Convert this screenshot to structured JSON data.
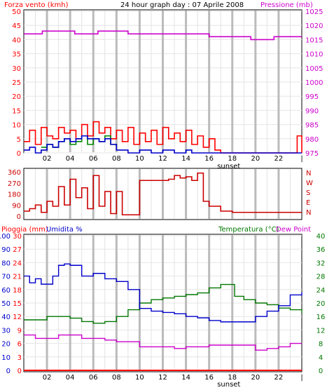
{
  "chart_data": [
    {
      "type": "line",
      "title": "24 hour graph day : 07 Aprile 2008",
      "ylabel_left": "Forza vento (kmh)",
      "ylabel_right": "Pressione (mb)",
      "x_ticks": [
        "02",
        "04",
        "06",
        "08",
        "10",
        "12",
        "14",
        "16",
        "18",
        "20",
        "22",
        "|"
      ],
      "sunset_label": "sunset",
      "ylim_left": [
        0,
        50
      ],
      "y_ticks_left": [
        "0",
        "5",
        "10",
        "15",
        "20",
        "25",
        "30",
        "35",
        "40",
        "45",
        "50"
      ],
      "ylim_right": [
        975,
        1025
      ],
      "y_ticks_right": [
        "975",
        "980",
        "985",
        "990",
        "995",
        "1000",
        "1005",
        "1010",
        "1015",
        "1020",
        "1025"
      ],
      "grid": true,
      "colors": {
        "wind": "#ff0000",
        "wind_avg": "#0000cc",
        "wind_green": "#008800",
        "pressure": "#cc00cc",
        "left_axis": "#ff0000",
        "right_axis": "#cc00cc",
        "grid": "#cccccc"
      },
      "series": [
        {
          "name": "Pressione",
          "axis": "right",
          "x": [
            0,
            1.2,
            1.6,
            2.4,
            3.6,
            4.4,
            5.4,
            6.4,
            7.4,
            8,
            9,
            10,
            11,
            12,
            13,
            14,
            15,
            16,
            16.5,
            18,
            19,
            19.6,
            20.8,
            21.6,
            22,
            22.8,
            23.4,
            24
          ],
          "y": [
            1017,
            1017,
            1018,
            1018,
            1018,
            1017,
            1017,
            1018,
            1018,
            1018,
            1017,
            1017,
            1017,
            1017,
            1017,
            1017,
            1017,
            1016,
            1016,
            1016,
            1016,
            1015,
            1015,
            1016,
            1016,
            1016,
            1016,
            1016
          ]
        },
        {
          "name": "Forza vento (max)",
          "axis": "left",
          "x": [
            0,
            0.5,
            1,
            1.5,
            2,
            2.5,
            3,
            3.5,
            4,
            4.5,
            5,
            5.5,
            6,
            6.5,
            7,
            7.5,
            8,
            8.5,
            9,
            9.5,
            10,
            10.5,
            11,
            11.5,
            12,
            12.5,
            13,
            13.5,
            14,
            14.5,
            15,
            15.5,
            16,
            16.5,
            17,
            18,
            19,
            20,
            21,
            22,
            23,
            23.6,
            24
          ],
          "y": [
            4,
            8,
            3,
            9,
            6,
            5,
            9,
            7,
            8,
            5,
            10,
            6,
            11,
            7,
            9,
            5,
            8,
            4,
            9,
            3,
            7,
            4,
            8,
            3,
            9,
            5,
            7,
            4,
            8,
            3,
            6,
            2,
            5,
            1,
            0,
            0,
            0,
            0,
            0,
            0,
            0,
            6,
            0
          ]
        },
        {
          "name": "Forza vento (media)",
          "axis": "left",
          "x": [
            0,
            0.5,
            1,
            1.5,
            2,
            2.5,
            3,
            3.5,
            4,
            4.5,
            5,
            5.5,
            6,
            6.5,
            7,
            7.5,
            8,
            8.5,
            9,
            9.5,
            10,
            11,
            12,
            13,
            14,
            14.5,
            15,
            16,
            17,
            24
          ],
          "y": [
            1,
            2,
            0,
            1,
            3,
            2,
            4,
            5,
            4,
            5,
            6,
            5,
            5,
            4,
            5,
            3,
            1,
            1,
            0,
            0,
            1,
            0,
            1,
            0,
            1,
            0,
            0,
            0,
            0,
            0
          ]
        },
        {
          "name": "Raffiche",
          "axis": "left",
          "x": [
            1.5,
            2,
            2.5,
            3,
            3.5,
            4,
            4.5,
            5,
            5.5,
            6,
            6.5,
            7,
            7.5,
            8
          ],
          "y": [
            2,
            3,
            2,
            4,
            5,
            3,
            4,
            6,
            3,
            5,
            4,
            6,
            3,
            2
          ]
        }
      ]
    },
    {
      "type": "line",
      "y_ticks_left": [
        "0",
        "90",
        "180",
        "270",
        "360"
      ],
      "ylim": [
        0,
        360
      ],
      "direction_labels": [
        "N",
        "W",
        "S",
        "E",
        "N"
      ],
      "colors": {
        "direction": "#cc0000"
      },
      "series": [
        {
          "name": "Direzione vento",
          "x": [
            0,
            0.5,
            1,
            1.5,
            2,
            2.5,
            3,
            3.5,
            4,
            4.5,
            5,
            5.5,
            6,
            6.5,
            7,
            7.5,
            8,
            8.5,
            9,
            9.5,
            10,
            11,
            12,
            12.5,
            13,
            13.5,
            14,
            14.5,
            15,
            15.5,
            16,
            17,
            18,
            19,
            20,
            21,
            22,
            23,
            24
          ],
          "y": [
            40,
            60,
            90,
            30,
            120,
            80,
            240,
            90,
            300,
            150,
            230,
            60,
            330,
            80,
            200,
            20,
            200,
            10,
            10,
            10,
            290,
            290,
            290,
            300,
            330,
            310,
            320,
            290,
            350,
            120,
            80,
            40,
            30,
            30,
            30,
            30,
            30,
            30,
            30
          ]
        }
      ]
    },
    {
      "type": "line",
      "ylabel_left_1": "Pioggia (mm)",
      "ylabel_left_2": "Umidita %",
      "ylabel_right_1": "Temperatura (°C)",
      "ylabel_right_2": "Dew Point",
      "x_ticks": [
        "02",
        "04",
        "06",
        "08",
        "10",
        "12",
        "14",
        "16",
        "18",
        "20",
        "22",
        "|"
      ],
      "sunset_label": "sunset",
      "y_ticks_humidity": [
        "0",
        "10",
        "20",
        "30",
        "40",
        "50",
        "60",
        "70",
        "80",
        "90",
        "100"
      ],
      "y_ticks_rain": [
        "0",
        "3",
        "6",
        "9",
        "12",
        "15",
        "18",
        "21",
        "24",
        "27",
        "30"
      ],
      "y_ticks_temp": [
        "0",
        "4",
        "8",
        "12",
        "16",
        "20",
        "24",
        "28",
        "32",
        "36",
        "40"
      ],
      "ylim_humidity": [
        0,
        100
      ],
      "ylim_temp": [
        0,
        40
      ],
      "colors": {
        "rain": "#ff0000",
        "humidity": "#0000cc",
        "temperature": "#007700",
        "dewpoint": "#cc00cc"
      },
      "series": [
        {
          "name": "Umidita",
          "axis": "humidity",
          "x": [
            0,
            0.5,
            1,
            1.5,
            2,
            2.5,
            3,
            3.5,
            4,
            5,
            6,
            7,
            8,
            9,
            10,
            11,
            12,
            13,
            14,
            15,
            16,
            17,
            18,
            19,
            20,
            21,
            22,
            23,
            24
          ],
          "y": [
            70,
            65,
            68,
            64,
            64,
            70,
            78,
            79,
            78,
            70,
            72,
            68,
            66,
            60,
            46,
            44,
            43,
            42,
            40,
            39,
            37,
            36,
            36,
            36,
            40,
            44,
            48,
            56,
            58
          ]
        },
        {
          "name": "Temperatura",
          "axis": "temp",
          "x": [
            0,
            1,
            2,
            3,
            4,
            5,
            6,
            7,
            8,
            9,
            10,
            11,
            12,
            13,
            14,
            15,
            16,
            17,
            18,
            18.2,
            19,
            20,
            21,
            22,
            23,
            24
          ],
          "y": [
            15,
            15,
            16,
            16,
            15.5,
            14.5,
            14,
            14.5,
            16,
            18,
            20,
            21,
            21.5,
            22,
            22.5,
            23,
            24.5,
            25.5,
            25.5,
            22,
            21,
            20,
            19.5,
            18.5,
            18,
            17
          ]
        },
        {
          "name": "Dew Point",
          "axis": "temp",
          "x": [
            0,
            1,
            2,
            3,
            4,
            5,
            6,
            7,
            8,
            9,
            10,
            11,
            12,
            13,
            14,
            15,
            16,
            17,
            18,
            19,
            20,
            21,
            22,
            23,
            24
          ],
          "y": [
            10.5,
            9.5,
            9.5,
            10.5,
            10.5,
            9.5,
            9.5,
            9,
            8.5,
            8.5,
            7,
            7,
            7,
            6.5,
            7,
            7,
            7.5,
            7.5,
            7.5,
            7.5,
            6,
            6.5,
            7,
            8,
            8
          ]
        },
        {
          "name": "Pioggia",
          "axis": "rain",
          "x": [
            0,
            24
          ],
          "y": [
            0,
            0
          ]
        }
      ]
    }
  ]
}
